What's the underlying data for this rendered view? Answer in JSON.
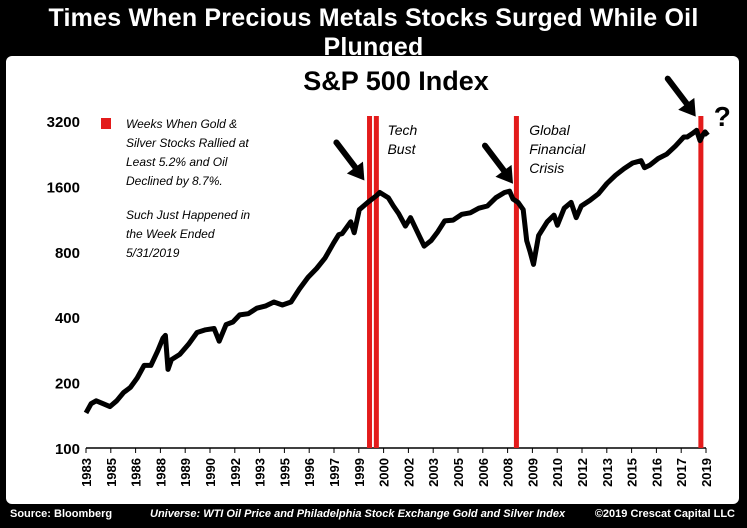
{
  "header": {
    "title": "Times When Precious Metals Stocks Surged While Oil Plunged"
  },
  "footer": {
    "source": "Source: Bloomberg",
    "universe": "Universe: WTI Oil Price and Philadelphia Stock Exchange Gold and Silver Index",
    "copyright": "©2019 Crescat Capital LLC"
  },
  "colors": {
    "event_bar": "#e31b1b",
    "index_line": "#000000",
    "background": "#000000",
    "panel": "#ffffff"
  },
  "chart_data": {
    "type": "line",
    "title": "S&P 500 Index",
    "y_scale": "log2",
    "ylim": [
      100,
      3400
    ],
    "y_ticks": [
      100,
      200,
      400,
      800,
      1600,
      3200
    ],
    "xlim": [
      1983.0,
      2019.3
    ],
    "x_ticks": [
      "1983",
      "1985",
      "1986",
      "1988",
      "1989",
      "1990",
      "1992",
      "1993",
      "1995",
      "1996",
      "1997",
      "1999",
      "2000",
      "2002",
      "2003",
      "2005",
      "2006",
      "2008",
      "2009",
      "2010",
      "2012",
      "2013",
      "2015",
      "2016",
      "2017",
      "2019"
    ],
    "legend": {
      "label": "Weeks When Gold & Silver Stocks Rallied at Least 5.2% and Oil Declined by 8.7%.",
      "note": "Such Just Happened in the Week Ended 5/31/2019",
      "position": "top-left"
    },
    "annotations": [
      {
        "text": "Tech Bust",
        "x": 2000.3
      },
      {
        "text": "Global Financial Crisis",
        "x": 2008.6
      },
      {
        "text": "?",
        "x": 2019.4
      }
    ],
    "event_weeks": [
      1999.6,
      2000.0,
      2008.2,
      2019.0
    ],
    "arrows": [
      {
        "target_year": 1999.3,
        "target_value": 1500
      },
      {
        "target_year": 2008.0,
        "target_value": 1450
      },
      {
        "target_year": 2018.7,
        "target_value": 2950
      }
    ],
    "series": [
      {
        "x": [
          1983.0,
          1983.3,
          1983.6,
          1984.0,
          1984.4,
          1984.8,
          1985.2,
          1985.6,
          1986.0,
          1986.4,
          1986.8,
          1987.2,
          1987.5,
          1987.65,
          1987.8,
          1988.0,
          1988.5,
          1989.0,
          1989.5,
          1990.0,
          1990.5,
          1990.8,
          1991.2,
          1991.6,
          1992.0,
          1992.5,
          1993.0,
          1993.5,
          1994.0,
          1994.5,
          1995.0,
          1995.5,
          1996.0,
          1996.5,
          1997.0,
          1997.5,
          1997.8,
          1998.0,
          1998.5,
          1998.7,
          1999.0,
          1999.5,
          2000.0,
          2000.2,
          2000.7,
          2001.0,
          2001.3,
          2001.7,
          2002.0,
          2002.5,
          2002.8,
          2003.2,
          2003.6,
          2004.0,
          2004.5,
          2005.0,
          2005.5,
          2006.0,
          2006.5,
          2007.0,
          2007.5,
          2007.8,
          2008.0,
          2008.3,
          2008.6,
          2008.8,
          2009.0,
          2009.2,
          2009.5,
          2010.0,
          2010.4,
          2010.6,
          2011.0,
          2011.4,
          2011.7,
          2012.0,
          2012.5,
          2013.0,
          2013.5,
          2014.0,
          2014.5,
          2015.0,
          2015.5,
          2015.7,
          2016.0,
          2016.5,
          2017.0,
          2017.5,
          2018.0,
          2018.2,
          2018.5,
          2018.75,
          2018.95,
          2019.1,
          2019.25,
          2019.4
        ],
        "values": [
          145,
          160,
          165,
          160,
          155,
          165,
          180,
          190,
          210,
          240,
          240,
          280,
          320,
          330,
          230,
          255,
          270,
          300,
          340,
          350,
          355,
          310,
          370,
          380,
          410,
          415,
          440,
          450,
          470,
          455,
          470,
          540,
          610,
          670,
          750,
          880,
          960,
          970,
          1100,
          980,
          1250,
          1350,
          1450,
          1500,
          1420,
          1300,
          1200,
          1050,
          1150,
          950,
          850,
          900,
          990,
          1110,
          1120,
          1190,
          1210,
          1270,
          1300,
          1420,
          1500,
          1520,
          1400,
          1350,
          1250,
          900,
          800,
          700,
          950,
          1100,
          1180,
          1060,
          1270,
          1350,
          1150,
          1300,
          1380,
          1480,
          1650,
          1800,
          1930,
          2050,
          2100,
          1950,
          2000,
          2150,
          2250,
          2450,
          2700,
          2700,
          2800,
          2900,
          2600,
          2750,
          2850,
          2750
        ]
      }
    ]
  }
}
